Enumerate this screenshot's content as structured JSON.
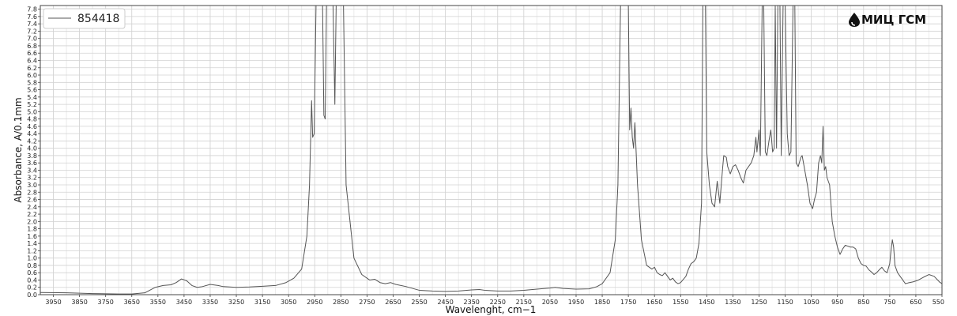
{
  "brand": {
    "logo_text": "МИЦ ГСМ",
    "logo_icon": "drop-icon"
  },
  "chart_data": {
    "type": "line",
    "title": "",
    "xlabel": "Wavelenght, cm−1",
    "ylabel": "Absorbance, A/0.1mm",
    "xlim": [
      4000,
      550
    ],
    "ylim": [
      0,
      7.9
    ],
    "x_reversed": true,
    "grid": true,
    "legend_position": "top-left",
    "x_ticks": [
      3950,
      3850,
      3750,
      3650,
      3550,
      3450,
      3350,
      3250,
      3150,
      3050,
      2950,
      2850,
      2750,
      2650,
      2550,
      2450,
      2350,
      2250,
      2150,
      2050,
      1950,
      1850,
      1750,
      1650,
      1550,
      1450,
      1350,
      1250,
      1150,
      1050,
      950,
      850,
      750,
      650,
      550
    ],
    "y_ticks": [
      "0.0",
      "0.2",
      "0.4",
      "0.6",
      "0.8",
      "1.0",
      "1.2",
      "1.4",
      "1.6",
      "1.8",
      "2.0",
      "2.2",
      "2.4",
      "2.6",
      "2.8",
      "3.0",
      "3.2",
      "3.4",
      "3.6",
      "3.8",
      "4.0",
      "4.2",
      "4.4",
      "4.6",
      "4.8",
      "5.0",
      "5.2",
      "5.4",
      "5.6",
      "5.8",
      "6.0",
      "6.2",
      "6.4",
      "6.6",
      "6.8",
      "7.0",
      "7.2",
      "7.4",
      "7.6",
      "7.8"
    ],
    "series": [
      {
        "name": "854418",
        "color": "#555555",
        "points": [
          [
            4000,
            0.06
          ],
          [
            3900,
            0.05
          ],
          [
            3800,
            0.03
          ],
          [
            3700,
            0.02
          ],
          [
            3650,
            0.02
          ],
          [
            3600,
            0.05
          ],
          [
            3560,
            0.2
          ],
          [
            3530,
            0.25
          ],
          [
            3500,
            0.27
          ],
          [
            3480,
            0.33
          ],
          [
            3460,
            0.43
          ],
          [
            3440,
            0.38
          ],
          [
            3420,
            0.25
          ],
          [
            3400,
            0.2
          ],
          [
            3380,
            0.22
          ],
          [
            3350,
            0.28
          ],
          [
            3320,
            0.25
          ],
          [
            3300,
            0.22
          ],
          [
            3250,
            0.2
          ],
          [
            3200,
            0.21
          ],
          [
            3150,
            0.23
          ],
          [
            3100,
            0.25
          ],
          [
            3060,
            0.33
          ],
          [
            3030,
            0.45
          ],
          [
            3000,
            0.7
          ],
          [
            2980,
            1.6
          ],
          [
            2970,
            3.0
          ],
          [
            2962,
            5.3
          ],
          [
            2958,
            4.3
          ],
          [
            2952,
            4.4
          ],
          [
            2945,
            7.9
          ],
          [
            2920,
            7.9
          ],
          [
            2915,
            4.9
          ],
          [
            2910,
            4.8
          ],
          [
            2905,
            7.9
          ],
          [
            2880,
            7.9
          ],
          [
            2873,
            5.2
          ],
          [
            2868,
            7.9
          ],
          [
            2840,
            7.9
          ],
          [
            2830,
            3.0
          ],
          [
            2800,
            1.0
          ],
          [
            2770,
            0.55
          ],
          [
            2740,
            0.4
          ],
          [
            2720,
            0.42
          ],
          [
            2700,
            0.33
          ],
          [
            2680,
            0.3
          ],
          [
            2660,
            0.33
          ],
          [
            2640,
            0.28
          ],
          [
            2600,
            0.22
          ],
          [
            2550,
            0.12
          ],
          [
            2500,
            0.1
          ],
          [
            2450,
            0.09
          ],
          [
            2400,
            0.1
          ],
          [
            2350,
            0.13
          ],
          [
            2320,
            0.14
          ],
          [
            2300,
            0.12
          ],
          [
            2250,
            0.1
          ],
          [
            2200,
            0.1
          ],
          [
            2150,
            0.12
          ],
          [
            2100,
            0.15
          ],
          [
            2050,
            0.18
          ],
          [
            2030,
            0.2
          ],
          [
            2000,
            0.17
          ],
          [
            1950,
            0.15
          ],
          [
            1900,
            0.16
          ],
          [
            1870,
            0.22
          ],
          [
            1850,
            0.3
          ],
          [
            1820,
            0.6
          ],
          [
            1800,
            1.5
          ],
          [
            1790,
            3.0
          ],
          [
            1780,
            7.9
          ],
          [
            1750,
            7.9
          ],
          [
            1745,
            4.5
          ],
          [
            1740,
            5.1
          ],
          [
            1735,
            4.3
          ],
          [
            1730,
            4.0
          ],
          [
            1725,
            4.7
          ],
          [
            1722,
            4.2
          ],
          [
            1715,
            3.0
          ],
          [
            1700,
            1.5
          ],
          [
            1680,
            0.8
          ],
          [
            1660,
            0.7
          ],
          [
            1650,
            0.75
          ],
          [
            1640,
            0.6
          ],
          [
            1630,
            0.55
          ],
          [
            1620,
            0.52
          ],
          [
            1610,
            0.6
          ],
          [
            1600,
            0.5
          ],
          [
            1590,
            0.4
          ],
          [
            1580,
            0.45
          ],
          [
            1570,
            0.35
          ],
          [
            1560,
            0.3
          ],
          [
            1550,
            0.33
          ],
          [
            1530,
            0.5
          ],
          [
            1520,
            0.7
          ],
          [
            1510,
            0.85
          ],
          [
            1500,
            0.9
          ],
          [
            1490,
            1.0
          ],
          [
            1480,
            1.4
          ],
          [
            1470,
            2.5
          ],
          [
            1465,
            7.9
          ],
          [
            1455,
            7.9
          ],
          [
            1450,
            3.9
          ],
          [
            1440,
            3.0
          ],
          [
            1430,
            2.5
          ],
          [
            1420,
            2.4
          ],
          [
            1410,
            3.1
          ],
          [
            1405,
            2.8
          ],
          [
            1400,
            2.5
          ],
          [
            1390,
            3.4
          ],
          [
            1385,
            3.8
          ],
          [
            1375,
            3.75
          ],
          [
            1370,
            3.5
          ],
          [
            1360,
            3.3
          ],
          [
            1350,
            3.5
          ],
          [
            1340,
            3.55
          ],
          [
            1330,
            3.4
          ],
          [
            1320,
            3.2
          ],
          [
            1310,
            3.05
          ],
          [
            1300,
            3.4
          ],
          [
            1290,
            3.5
          ],
          [
            1280,
            3.6
          ],
          [
            1270,
            3.8
          ],
          [
            1262,
            4.3
          ],
          [
            1258,
            3.9
          ],
          [
            1250,
            4.5
          ],
          [
            1245,
            3.8
          ],
          [
            1238,
            7.9
          ],
          [
            1232,
            7.9
          ],
          [
            1226,
            3.9
          ],
          [
            1220,
            3.8
          ],
          [
            1212,
            4.2
          ],
          [
            1205,
            4.5
          ],
          [
            1198,
            3.9
          ],
          [
            1192,
            4.0
          ],
          [
            1188,
            7.9
          ],
          [
            1183,
            4.0
          ],
          [
            1178,
            7.9
          ],
          [
            1170,
            7.9
          ],
          [
            1165,
            3.8
          ],
          [
            1158,
            7.9
          ],
          [
            1150,
            7.9
          ],
          [
            1142,
            4.4
          ],
          [
            1135,
            3.8
          ],
          [
            1128,
            3.9
          ],
          [
            1120,
            7.9
          ],
          [
            1113,
            7.9
          ],
          [
            1108,
            3.6
          ],
          [
            1100,
            3.5
          ],
          [
            1090,
            3.75
          ],
          [
            1085,
            3.8
          ],
          [
            1075,
            3.4
          ],
          [
            1065,
            3.0
          ],
          [
            1055,
            2.5
          ],
          [
            1045,
            2.35
          ],
          [
            1038,
            2.6
          ],
          [
            1030,
            2.8
          ],
          [
            1022,
            3.6
          ],
          [
            1015,
            3.8
          ],
          [
            1010,
            3.6
          ],
          [
            1005,
            4.6
          ],
          [
            1000,
            3.4
          ],
          [
            995,
            3.5
          ],
          [
            990,
            3.2
          ],
          [
            980,
            3.0
          ],
          [
            970,
            2.0
          ],
          [
            960,
            1.6
          ],
          [
            950,
            1.3
          ],
          [
            940,
            1.1
          ],
          [
            930,
            1.25
          ],
          [
            920,
            1.35
          ],
          [
            900,
            1.3
          ],
          [
            890,
            1.3
          ],
          [
            880,
            1.25
          ],
          [
            870,
            1.0
          ],
          [
            860,
            0.85
          ],
          [
            850,
            0.8
          ],
          [
            840,
            0.78
          ],
          [
            830,
            0.68
          ],
          [
            820,
            0.62
          ],
          [
            810,
            0.55
          ],
          [
            800,
            0.6
          ],
          [
            790,
            0.68
          ],
          [
            780,
            0.75
          ],
          [
            770,
            0.65
          ],
          [
            760,
            0.6
          ],
          [
            750,
            0.85
          ],
          [
            745,
            1.2
          ],
          [
            740,
            1.5
          ],
          [
            735,
            1.3
          ],
          [
            730,
            0.8
          ],
          [
            720,
            0.6
          ],
          [
            710,
            0.5
          ],
          [
            700,
            0.4
          ],
          [
            690,
            0.3
          ],
          [
            680,
            0.32
          ],
          [
            660,
            0.35
          ],
          [
            640,
            0.4
          ],
          [
            620,
            0.48
          ],
          [
            600,
            0.55
          ],
          [
            580,
            0.5
          ],
          [
            560,
            0.35
          ],
          [
            550,
            0.3
          ]
        ]
      }
    ]
  }
}
